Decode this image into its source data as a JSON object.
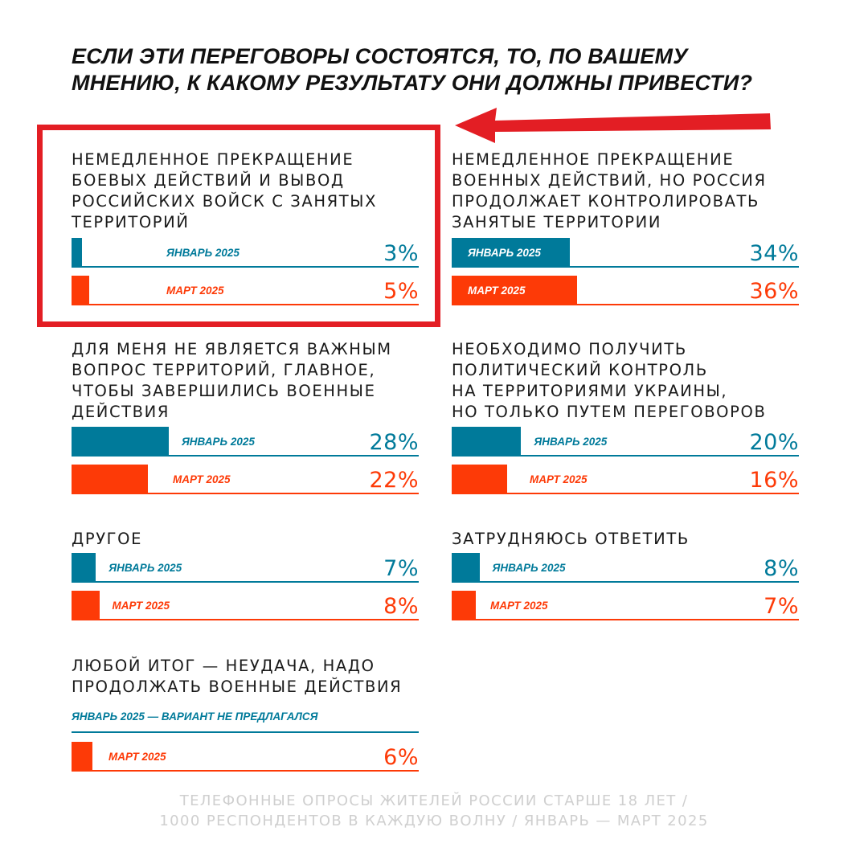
{
  "title_lines": [
    "ЕСЛИ ЭТИ ПЕРЕГОВОРЫ СОСТОЯТСЯ, ТО, ПО ВАШЕМУ",
    "МНЕНИЮ, К КАКОМУ РЕЗУЛЬТАТУ ОНИ ДОЛЖНЫ ПРИВЕСТИ?"
  ],
  "colors": {
    "january": "#007a9a",
    "march": "#fd3a07",
    "highlight": "#e31e24"
  },
  "footer_lines": [
    "ТЕЛЕФОННЫЕ ОПРОСЫ ЖИТЕЛЕЙ РОССИИ СТАРШЕ 18 ЛЕТ /",
    "1000 РЕСПОНДЕНТОВ В КАЖДУЮ ВОЛНУ / ЯНВАРЬ — МАРТ 2025"
  ],
  "chart_data": {
    "type": "bar",
    "unit": "%",
    "series_labels": {
      "january": "ЯНВАРЬ 2025",
      "march": "МАРТ 2025"
    },
    "panels": [
      {
        "title": "НЕМЕДЛЕННОЕ ПРЕКРАЩЕНИЕ\nБОЕВЫХ ДЕЙСТВИЙ И ВЫВОД\nРОССИЙСКИХ ВОЙСК С ЗАНЯТЫХ\nТЕРРИТОРИЙ",
        "highlighted": true,
        "january": {
          "value": 3,
          "display": "3%"
        },
        "march": {
          "value": 5,
          "display": "5%"
        }
      },
      {
        "title": "НЕМЕДЛЕННОЕ ПРЕКРАЩЕНИЕ\nВОЕННЫХ ДЕЙСТВИЙ, НО РОССИЯ\nПРОДОЛЖАЕТ КОНТРОЛИРОВАТЬ\nЗАНЯТЫЕ ТЕРРИТОРИИ",
        "highlighted": false,
        "january": {
          "value": 34,
          "display": "34%"
        },
        "march": {
          "value": 36,
          "display": "36%"
        }
      },
      {
        "title": "ДЛЯ МЕНЯ НЕ ЯВЛЯЕТСЯ ВАЖНЫМ\nВОПРОС ТЕРРИТОРИЙ, ГЛАВНОЕ,\nЧТОБЫ ЗАВЕРШИЛИСЬ ВОЕННЫЕ\nДЕЙСТВИЯ",
        "highlighted": false,
        "january": {
          "value": 28,
          "display": "28%"
        },
        "march": {
          "value": 22,
          "display": "22%"
        }
      },
      {
        "title": "НЕОБХОДИМО ПОЛУЧИТЬ\nПОЛИТИЧЕСКИЙ КОНТРОЛЬ\nНА ТЕРРИТОРИЯМИ УКРАИНЫ,\nНО ТОЛЬКО ПУТЕМ ПЕРЕГОВОРОВ",
        "highlighted": false,
        "january": {
          "value": 20,
          "display": "20%"
        },
        "march": {
          "value": 16,
          "display": "16%"
        }
      },
      {
        "title": "ДРУГОЕ",
        "highlighted": false,
        "january": {
          "value": 7,
          "display": "7%"
        },
        "march": {
          "value": 8,
          "display": "8%"
        }
      },
      {
        "title": "ЗАТРУДНЯЮСЬ ОТВЕТИТЬ",
        "highlighted": false,
        "january": {
          "value": 8,
          "display": "8%"
        },
        "march": {
          "value": 7,
          "display": "7%"
        }
      },
      {
        "title": "ЛЮБОЙ ИТОГ — НЕУДАЧА, НАДО\nПРОДОЛЖАТЬ ВОЕННЫЕ ДЕЙСТВИЯ",
        "highlighted": false,
        "january": {
          "value": null,
          "note": "ЯНВАРЬ 2025 — ВАРИАНТ НЕ ПРЕДЛАГАЛСЯ"
        },
        "march": {
          "value": 6,
          "display": "6%"
        }
      }
    ]
  }
}
